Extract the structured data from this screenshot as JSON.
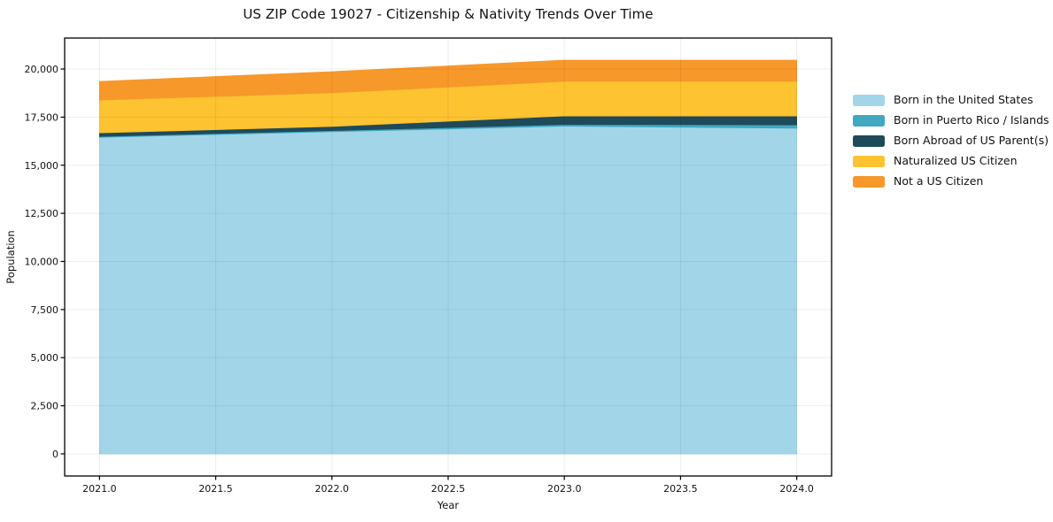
{
  "title": "US ZIP Code 19027 - Citizenship & Nativity Trends Over Time",
  "chart_data": {
    "type": "area",
    "stacked": true,
    "title": "US ZIP Code 19027 - Citizenship & Nativity Trends Over Time",
    "xlabel": "Year",
    "ylabel": "Population",
    "x": [
      2021,
      2022,
      2023,
      2024
    ],
    "series": [
      {
        "name": "Born in the United States",
        "color": "#a3d5e9",
        "values": [
          16450,
          16740,
          17030,
          16920
        ]
      },
      {
        "name": "Born in Puerto Rico / Islands",
        "color": "#41a8c2",
        "values": [
          45,
          60,
          90,
          180
        ]
      },
      {
        "name": "Born Abroad of US Parent(s)",
        "color": "#1e4a5a",
        "values": [
          190,
          215,
          440,
          460
        ]
      },
      {
        "name": "Naturalized US Citizen",
        "color": "#fdc330",
        "values": [
          1700,
          1750,
          1800,
          1800
        ]
      },
      {
        "name": "Not a US Citizen",
        "color": "#f7982b",
        "values": [
          970,
          1100,
          1100,
          1100
        ]
      }
    ],
    "stack_totals": [
      19355,
      19865,
      20460,
      20460
    ],
    "xlim": [
      2020.85,
      2024.15
    ],
    "ylim": [
      -1150,
      21610
    ],
    "xticks": {
      "values": [
        2021.0,
        2021.5,
        2022.0,
        2022.5,
        2023.0,
        2023.5,
        2024.0
      ],
      "labels": [
        "2021.0",
        "2021.5",
        "2022.0",
        "2022.5",
        "2023.0",
        "2023.5",
        "2024.0"
      ]
    },
    "yticks": {
      "values": [
        0,
        2500,
        5000,
        7500,
        10000,
        12500,
        15000,
        17500,
        20000
      ],
      "labels": [
        "0",
        "2,500",
        "5,000",
        "7,500",
        "10,000",
        "12,500",
        "15,000",
        "17,500",
        "20,000"
      ]
    },
    "grid": true,
    "legend_position": "right of plot, no frame"
  }
}
